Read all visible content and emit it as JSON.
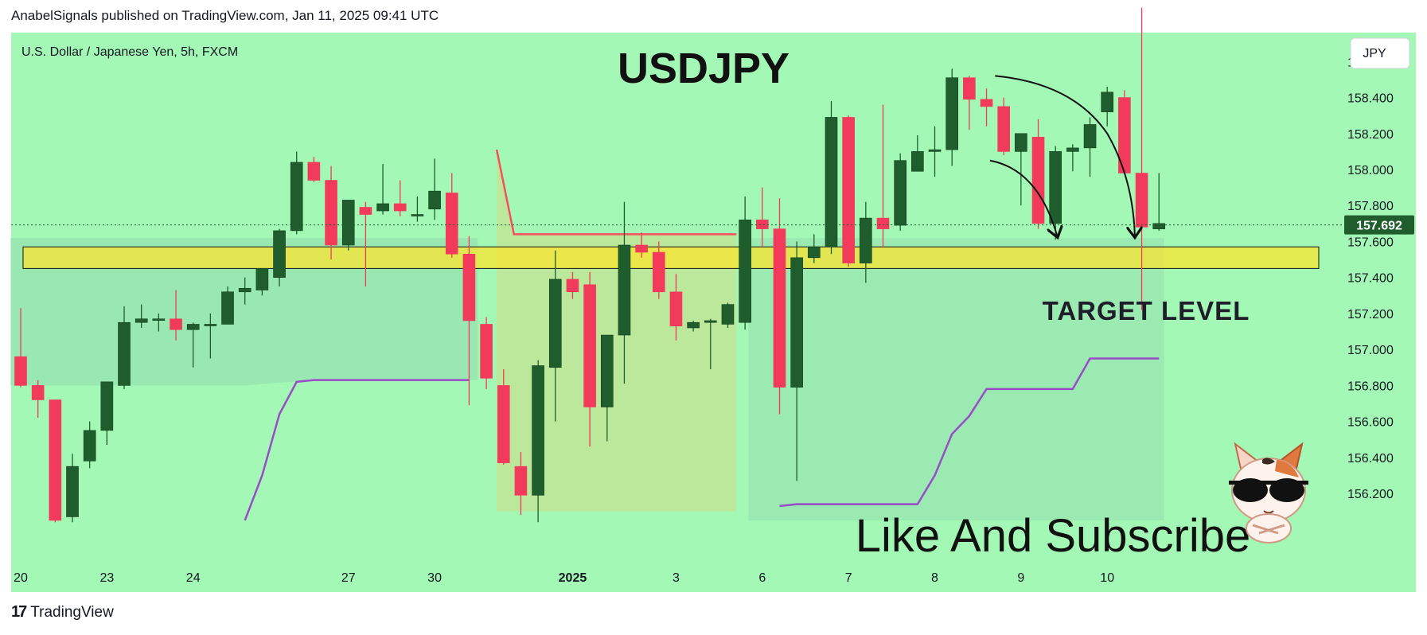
{
  "header": {
    "published_by": "AnabelSignals published on TradingView.com, Jan 11, 2025 09:41 UTC"
  },
  "footer": {
    "logo_icon": "tradingview-logo-icon",
    "logo_glyph": "17",
    "brand": "TradingView"
  },
  "chart_data": {
    "type": "candlestick",
    "symbol_label": "U.S. Dollar / Japanese Yen, 5h, FXCM",
    "title": "USDJPY",
    "currency_badge": "JPY",
    "current_price": "157.692",
    "target_label": "TARGET LEVEL",
    "cta_text": "Like And Subscribe",
    "ylim": [
      156.03,
      158.67
    ],
    "yticks": [
      "156.200",
      "156.400",
      "156.600",
      "156.800",
      "157.000",
      "157.200",
      "157.400",
      "157.600",
      "157.800",
      "158.000",
      "158.200",
      "158.400",
      "158.600"
    ],
    "x_labels": [
      "20",
      "23",
      "24",
      "27",
      "30",
      "2025",
      "3",
      "6",
      "7",
      "8",
      "9",
      "10"
    ],
    "x_label_candle_index": [
      0,
      5,
      10,
      19,
      24,
      32,
      38,
      43,
      48,
      53,
      58,
      63
    ],
    "target_zone": {
      "low": 157.45,
      "high": 157.57
    },
    "candles": [
      {
        "o": 156.96,
        "h": 157.23,
        "l": 156.79,
        "c": 156.8
      },
      {
        "o": 156.8,
        "h": 156.83,
        "l": 156.62,
        "c": 156.72
      },
      {
        "o": 156.72,
        "h": 156.72,
        "l": 156.04,
        "c": 156.05
      },
      {
        "o": 156.07,
        "h": 156.42,
        "l": 156.04,
        "c": 156.35
      },
      {
        "o": 156.38,
        "h": 156.6,
        "l": 156.34,
        "c": 156.55
      },
      {
        "o": 156.55,
        "h": 156.82,
        "l": 156.47,
        "c": 156.82
      },
      {
        "o": 156.8,
        "h": 157.24,
        "l": 156.78,
        "c": 157.15
      },
      {
        "o": 157.15,
        "h": 157.25,
        "l": 157.12,
        "c": 157.17
      },
      {
        "o": 157.17,
        "h": 157.2,
        "l": 157.1,
        "c": 157.17
      },
      {
        "o": 157.17,
        "h": 157.33,
        "l": 157.05,
        "c": 157.11
      },
      {
        "o": 157.11,
        "h": 157.15,
        "l": 156.9,
        "c": 157.14
      },
      {
        "o": 157.14,
        "h": 157.2,
        "l": 156.95,
        "c": 157.14
      },
      {
        "o": 157.14,
        "h": 157.35,
        "l": 157.14,
        "c": 157.32
      },
      {
        "o": 157.32,
        "h": 157.4,
        "l": 157.25,
        "c": 157.34
      },
      {
        "o": 157.33,
        "h": 157.44,
        "l": 157.3,
        "c": 157.45
      },
      {
        "o": 157.4,
        "h": 157.67,
        "l": 157.35,
        "c": 157.66
      },
      {
        "o": 157.66,
        "h": 158.1,
        "l": 157.64,
        "c": 158.04
      },
      {
        "o": 158.04,
        "h": 158.07,
        "l": 157.93,
        "c": 157.94
      },
      {
        "o": 157.94,
        "h": 158.02,
        "l": 157.5,
        "c": 157.58
      },
      {
        "o": 157.58,
        "h": 157.83,
        "l": 157.55,
        "c": 157.83
      },
      {
        "o": 157.79,
        "h": 157.82,
        "l": 157.35,
        "c": 157.75
      },
      {
        "o": 157.77,
        "h": 158.03,
        "l": 157.75,
        "c": 157.81
      },
      {
        "o": 157.81,
        "h": 157.94,
        "l": 157.74,
        "c": 157.77
      },
      {
        "o": 157.75,
        "h": 157.85,
        "l": 157.71,
        "c": 157.75
      },
      {
        "o": 157.78,
        "h": 158.06,
        "l": 157.72,
        "c": 157.88
      },
      {
        "o": 157.87,
        "h": 157.98,
        "l": 157.51,
        "c": 157.53
      },
      {
        "o": 157.53,
        "h": 157.63,
        "l": 156.69,
        "c": 157.16
      },
      {
        "o": 157.14,
        "h": 157.18,
        "l": 156.78,
        "c": 156.84
      },
      {
        "o": 156.8,
        "h": 156.89,
        "l": 156.36,
        "c": 156.37
      },
      {
        "o": 156.35,
        "h": 156.43,
        "l": 156.08,
        "c": 156.19
      },
      {
        "o": 156.19,
        "h": 156.94,
        "l": 156.04,
        "c": 156.91
      },
      {
        "o": 156.9,
        "h": 157.55,
        "l": 156.6,
        "c": 157.39
      },
      {
        "o": 157.39,
        "h": 157.43,
        "l": 157.28,
        "c": 157.32
      },
      {
        "o": 157.36,
        "h": 157.43,
        "l": 156.46,
        "c": 156.68
      },
      {
        "o": 156.68,
        "h": 157.06,
        "l": 156.49,
        "c": 157.08
      },
      {
        "o": 157.08,
        "h": 157.82,
        "l": 156.81,
        "c": 157.58
      },
      {
        "o": 157.58,
        "h": 157.65,
        "l": 157.51,
        "c": 157.54
      },
      {
        "o": 157.54,
        "h": 157.6,
        "l": 157.28,
        "c": 157.32
      },
      {
        "o": 157.32,
        "h": 157.42,
        "l": 157.05,
        "c": 157.13
      },
      {
        "o": 157.12,
        "h": 157.16,
        "l": 157.1,
        "c": 157.15
      },
      {
        "o": 157.15,
        "h": 157.17,
        "l": 156.89,
        "c": 157.16
      },
      {
        "o": 157.14,
        "h": 157.26,
        "l": 157.12,
        "c": 157.25
      },
      {
        "o": 157.15,
        "h": 157.85,
        "l": 157.11,
        "c": 157.72
      },
      {
        "o": 157.72,
        "h": 157.9,
        "l": 157.57,
        "c": 157.67
      },
      {
        "o": 157.67,
        "h": 157.84,
        "l": 156.64,
        "c": 156.79
      },
      {
        "o": 156.79,
        "h": 157.6,
        "l": 156.27,
        "c": 157.51
      },
      {
        "o": 157.51,
        "h": 157.64,
        "l": 157.48,
        "c": 157.57
      },
      {
        "o": 157.57,
        "h": 158.38,
        "l": 157.53,
        "c": 158.29
      },
      {
        "o": 158.29,
        "h": 158.3,
        "l": 157.46,
        "c": 157.48
      },
      {
        "o": 157.48,
        "h": 157.82,
        "l": 157.37,
        "c": 157.73
      },
      {
        "o": 157.73,
        "h": 158.36,
        "l": 157.57,
        "c": 157.67
      },
      {
        "o": 157.69,
        "h": 158.09,
        "l": 157.66,
        "c": 158.05
      },
      {
        "o": 157.99,
        "h": 158.19,
        "l": 158.0,
        "c": 158.1
      },
      {
        "o": 158.1,
        "h": 158.24,
        "l": 157.96,
        "c": 158.11
      },
      {
        "o": 158.11,
        "h": 158.56,
        "l": 158.02,
        "c": 158.51
      },
      {
        "o": 158.51,
        "h": 158.52,
        "l": 158.22,
        "c": 158.39
      },
      {
        "o": 158.39,
        "h": 158.45,
        "l": 158.24,
        "c": 158.35
      },
      {
        "o": 158.35,
        "h": 158.4,
        "l": 158.08,
        "c": 158.1
      },
      {
        "o": 158.1,
        "h": 158.2,
        "l": 157.8,
        "c": 158.2
      },
      {
        "o": 158.18,
        "h": 158.28,
        "l": 157.67,
        "c": 157.7
      },
      {
        "o": 157.7,
        "h": 158.13,
        "l": 157.61,
        "c": 158.1
      },
      {
        "o": 158.1,
        "h": 158.14,
        "l": 157.99,
        "c": 158.12
      },
      {
        "o": 158.12,
        "h": 158.29,
        "l": 157.96,
        "c": 158.25
      },
      {
        "o": 158.32,
        "h": 158.46,
        "l": 158.24,
        "c": 158.43
      },
      {
        "o": 158.4,
        "h": 158.44,
        "l": 157.98,
        "c": 157.98
      },
      {
        "o": 157.98,
        "h": 158.9,
        "l": 157.22,
        "c": 157.68
      },
      {
        "o": 157.67,
        "h": 157.98,
        "l": 157.66,
        "c": 157.7
      }
    ],
    "support_line": {
      "segments": [
        {
          "from": 13,
          "to": 17,
          "values": [
            156.05,
            156.3,
            156.64,
            156.82,
            156.83
          ]
        },
        {
          "from": 17,
          "to": 26,
          "value": 156.83
        },
        {
          "from": 44,
          "to": 53,
          "values": [
            156.13,
            156.14,
            156.14,
            156.14,
            156.14,
            156.14,
            156.14,
            156.14,
            156.14,
            156.3
          ]
        },
        {
          "from": 53,
          "to": 56,
          "values": [
            156.3,
            156.53,
            156.63,
            156.78
          ]
        },
        {
          "from": 56,
          "to": 61,
          "value": 156.78
        },
        {
          "from": 61,
          "to": 62,
          "values": [
            156.78,
            156.95
          ]
        },
        {
          "from": 62,
          "to": 66,
          "value": 156.95
        }
      ]
    },
    "resistance_line": {
      "drop": {
        "from": 27.6,
        "to": 28.6,
        "values": [
          158.11,
          157.64
        ]
      },
      "flat": {
        "from": 28.6,
        "to": 41.5,
        "value": 157.64
      }
    },
    "colors": {
      "background": "#a2f8b4",
      "up_candle": "#1f5e2c",
      "down_candle": "#f23b5a",
      "target_zone": "#fde62b",
      "support_line": "#9b4bc8",
      "resistance_line": "#f65060",
      "price_badge": "#1f5e2c"
    }
  }
}
